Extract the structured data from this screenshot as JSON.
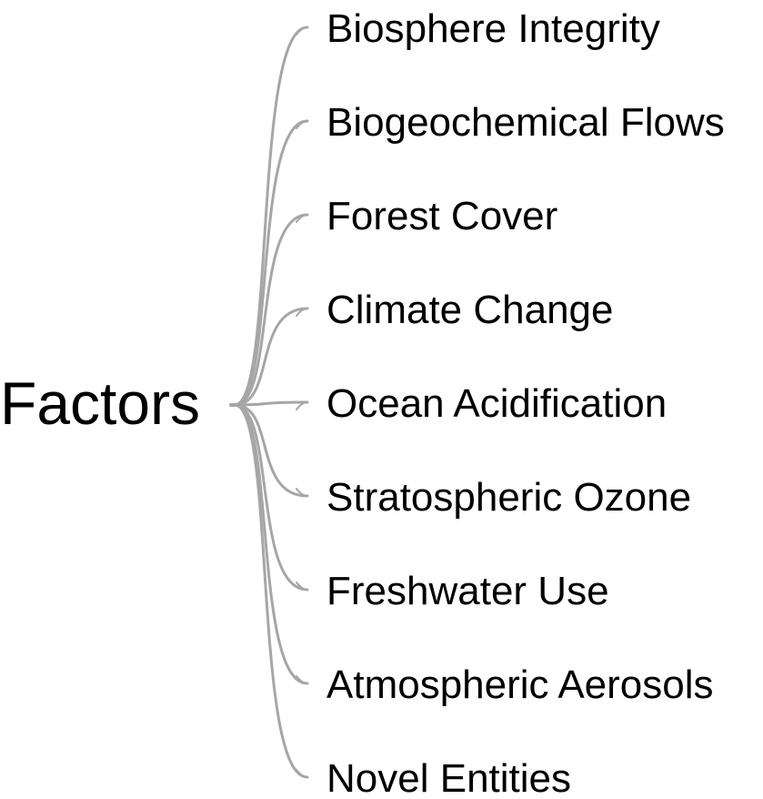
{
  "root": {
    "label": "Factors"
  },
  "leaves": [
    {
      "label": "Biosphere Integrity"
    },
    {
      "label": "Biogeochemical Flows"
    },
    {
      "label": "Forest Cover"
    },
    {
      "label": "Climate Change"
    },
    {
      "label": "Ocean Acidification"
    },
    {
      "label": "Stratospheric Ozone"
    },
    {
      "label": "Freshwater Use"
    },
    {
      "label": "Atmospheric Aerosols"
    },
    {
      "label": "Novel Entities"
    }
  ],
  "colors": {
    "branch": "#a6a6a6",
    "text": "#000000",
    "background": "#ffffff"
  }
}
